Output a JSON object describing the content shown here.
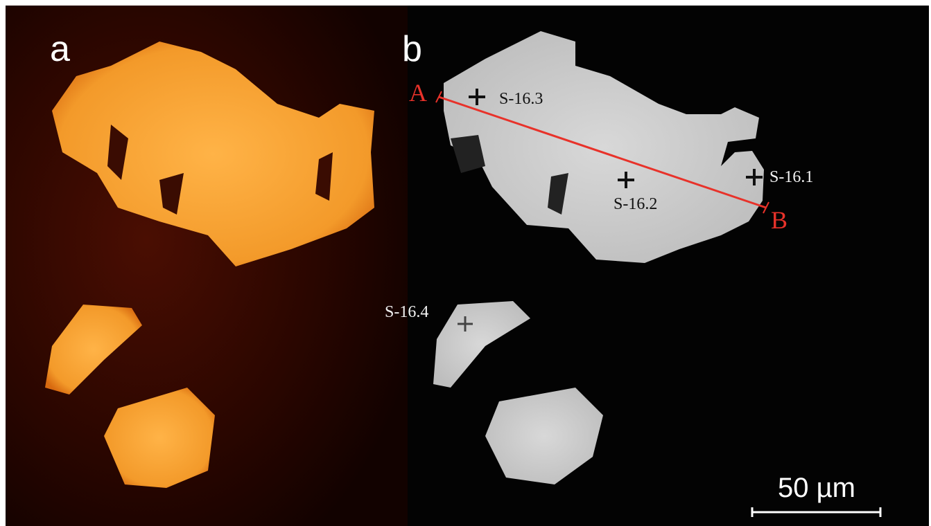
{
  "panels": [
    {
      "label": "a"
    },
    {
      "label": "b",
      "profile": {
        "start": "A",
        "end": "B"
      },
      "points": [
        "S-16.3",
        "S-16.2",
        "S-16.1",
        "S-16.4"
      ]
    }
  ],
  "scale_bar": "50 µm"
}
